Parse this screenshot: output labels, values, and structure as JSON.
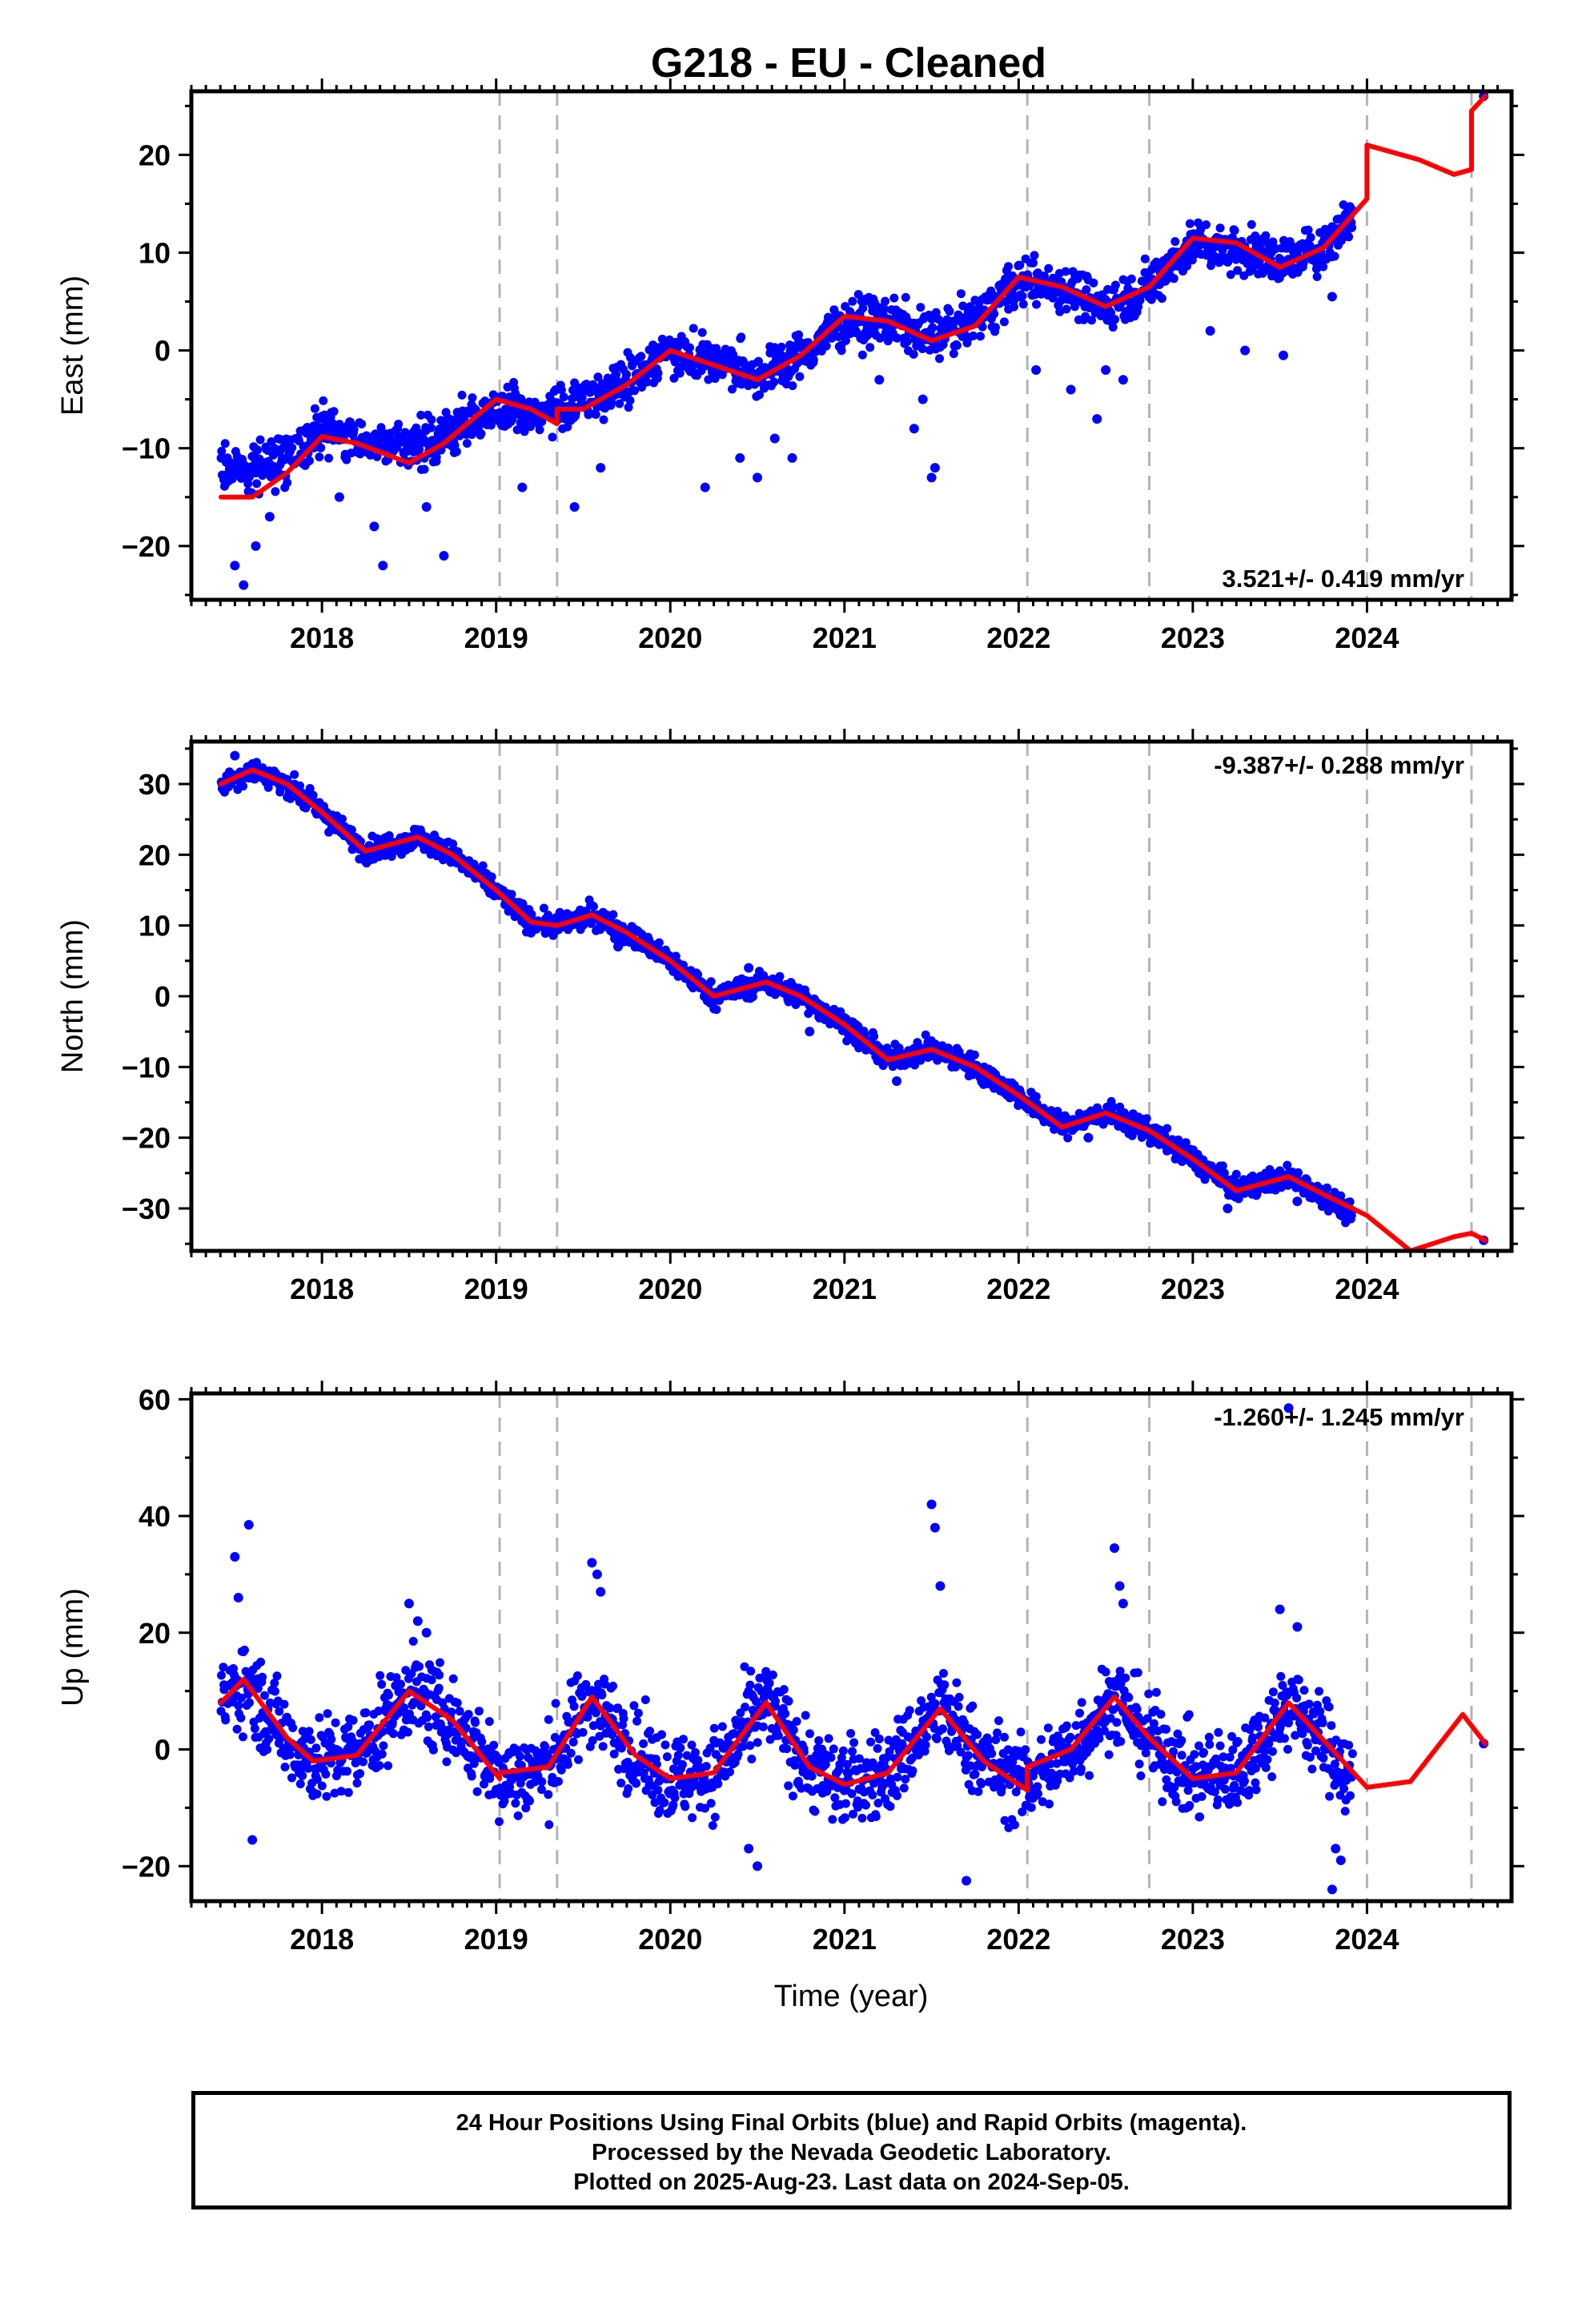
{
  "title": "G218  - EU - Cleaned",
  "xlabel": "Time (year)",
  "x_ticks": [
    "2018",
    "2019",
    "2020",
    "2021",
    "2022",
    "2023",
    "2024"
  ],
  "footer": {
    "line1": "24 Hour Positions Using Final Orbits (blue) and Rapid Orbits (magenta).",
    "line2": "Processed by the Nevada Geodetic Laboratory.",
    "line3": "Plotted on 2025-Aug-23. Last data on 2024-Sep-05."
  },
  "colors": {
    "points": "#0000ff",
    "model": "#ff0000",
    "events": "#b4b4b4"
  },
  "chart_data": [
    {
      "type": "scatter",
      "ylabel": "East (mm)",
      "xlim": [
        2017.25,
        2024.83
      ],
      "ylim": [
        -25.5,
        26.5
      ],
      "y_ticks": [
        -20,
        -10,
        0,
        10,
        20
      ],
      "rate_label": "3.521+/- 0.419 mm/yr",
      "event_lines": [
        2019.02,
        2019.35,
        2022.05,
        2022.75,
        2024.0,
        2024.6
      ],
      "series": [
        {
          "kind": "model",
          "x": [
            2017.42,
            2017.6,
            2017.8,
            2018.0,
            2018.2,
            2018.5,
            2018.7,
            2019.0,
            2019.2,
            2019.35,
            2019.35,
            2019.5,
            2019.75,
            2020.0,
            2020.25,
            2020.5,
            2020.75,
            2021.0,
            2021.25,
            2021.5,
            2021.75,
            2022.0,
            2022.25,
            2022.5,
            2022.75,
            2023.0,
            2023.25,
            2023.5,
            2023.75,
            2024.0,
            2024.0,
            2024.3,
            2024.5,
            2024.6,
            2024.6,
            2024.68
          ],
          "y": [
            -15,
            -15,
            -12.5,
            -8.8,
            -9.5,
            -11.5,
            -9.5,
            -5,
            -6,
            -7.5,
            -6,
            -6,
            -3.5,
            0,
            -1.5,
            -3,
            -0.5,
            3.5,
            3,
            1,
            2.5,
            7.5,
            6.5,
            4.5,
            6.5,
            11.5,
            11,
            8.5,
            10.5,
            15.5,
            21,
            19.5,
            18,
            18.5,
            24.5,
            26
          ]
        },
        {
          "kind": "points",
          "band": 2.2,
          "x": [
            2017.42,
            2017.6,
            2017.8,
            2018.0,
            2018.2,
            2018.5,
            2018.7,
            2019.0,
            2019.2,
            2019.35,
            2019.5,
            2019.75,
            2020.0,
            2020.25,
            2020.5,
            2020.75,
            2021.0,
            2021.25,
            2021.5,
            2021.75,
            2022.0,
            2022.25,
            2022.5,
            2022.75,
            2023.0,
            2023.25,
            2023.5,
            2023.75,
            2023.92
          ],
          "y": [
            -12,
            -12,
            -11,
            -8,
            -9,
            -10,
            -8.5,
            -6,
            -6.5,
            -6,
            -5.5,
            -3,
            0,
            -1,
            -2.5,
            -0.5,
            3,
            3,
            1.5,
            3,
            7,
            6.5,
            4.5,
            6.5,
            11,
            10.5,
            9,
            10.5,
            14
          ]
        },
        {
          "kind": "outliers",
          "x": [
            2017.5,
            2017.55,
            2017.62,
            2017.7,
            2018.1,
            2018.3,
            2018.35,
            2018.6,
            2018.7,
            2019.15,
            2019.45,
            2019.6,
            2020.2,
            2020.4,
            2020.5,
            2020.6,
            2020.7,
            2021.2,
            2021.4,
            2021.45,
            2021.5,
            2021.52,
            2022.1,
            2022.3,
            2022.45,
            2022.5,
            2022.6,
            2023.1,
            2023.3,
            2023.52,
            2023.8,
            2024.67
          ],
          "y": [
            -22,
            -24,
            -20,
            -17,
            -15,
            -18,
            -22,
            -16,
            -21,
            -14,
            -16,
            -12,
            -14,
            -11,
            -13,
            -9,
            -11,
            -3,
            -8,
            -5,
            -13,
            -12,
            -2,
            -4,
            -7,
            -2,
            -3,
            2,
            0,
            -0.5,
            5.5,
            26
          ]
        }
      ]
    },
    {
      "type": "scatter",
      "ylabel": "North (mm)",
      "xlim": [
        2017.25,
        2024.83
      ],
      "ylim": [
        -36,
        36
      ],
      "y_ticks": [
        -30,
        -20,
        -10,
        0,
        10,
        20,
        30
      ],
      "rate_label": "-9.387+/- 0.288 mm/yr",
      "event_lines": [
        2019.02,
        2019.35,
        2022.05,
        2022.75,
        2024.0,
        2024.6
      ],
      "series": [
        {
          "kind": "model",
          "x": [
            2017.42,
            2017.6,
            2017.8,
            2018.0,
            2018.25,
            2018.55,
            2018.75,
            2019.0,
            2019.2,
            2019.35,
            2019.55,
            2019.75,
            2020.0,
            2020.25,
            2020.55,
            2020.75,
            2021.0,
            2021.25,
            2021.5,
            2021.75,
            2022.0,
            2022.25,
            2022.5,
            2022.75,
            2023.0,
            2023.25,
            2023.55,
            2023.75,
            2024.0,
            2024.25,
            2024.5,
            2024.6,
            2024.68
          ],
          "y": [
            30,
            32,
            30,
            26,
            20.5,
            22.5,
            20,
            15,
            10.5,
            10,
            11.5,
            9,
            5,
            0,
            2,
            0,
            -4,
            -9,
            -7.5,
            -10,
            -14,
            -18.5,
            -16.5,
            -19,
            -23,
            -27.5,
            -25.5,
            -28,
            -31,
            -36,
            -34,
            -33.5,
            -34.5
          ]
        },
        {
          "kind": "points",
          "band": 1.5,
          "x": [
            2017.42,
            2017.6,
            2017.8,
            2018.0,
            2018.25,
            2018.55,
            2018.75,
            2019.0,
            2019.2,
            2019.35,
            2019.55,
            2019.75,
            2020.0,
            2020.25,
            2020.55,
            2020.75,
            2021.0,
            2021.25,
            2021.5,
            2021.75,
            2022.0,
            2022.25,
            2022.5,
            2022.75,
            2023.0,
            2023.25,
            2023.55,
            2023.75,
            2023.92
          ],
          "y": [
            30,
            32,
            30,
            26,
            20.5,
            22.5,
            20,
            15,
            10.5,
            10,
            11.5,
            9,
            5,
            0,
            2,
            0,
            -4,
            -9,
            -7.5,
            -10,
            -14,
            -18.5,
            -16.5,
            -19,
            -23,
            -27.5,
            -25.5,
            -28,
            -31
          ]
        },
        {
          "kind": "outliers",
          "x": [
            2017.5,
            2018.1,
            2019.7,
            2020.45,
            2020.8,
            2021.3,
            2022.4,
            2023.2,
            2023.6,
            2024.67
          ],
          "y": [
            34,
            24,
            7,
            4,
            -5,
            -12,
            -20,
            -30,
            -29,
            -34.5
          ]
        }
      ]
    },
    {
      "type": "scatter",
      "ylabel": "Up (mm)",
      "xlim": [
        2017.25,
        2024.83
      ],
      "ylim": [
        -26,
        61
      ],
      "y_ticks": [
        -20,
        0,
        20,
        40,
        60
      ],
      "rate_label": "-1.260+/- 1.245 mm/yr",
      "event_lines": [
        2019.02,
        2019.35,
        2022.05,
        2022.75,
        2024.0,
        2024.6
      ],
      "series": [
        {
          "kind": "model",
          "x": [
            2017.42,
            2017.55,
            2017.8,
            2017.95,
            2018.2,
            2018.5,
            2018.75,
            2019.02,
            2019.02,
            2019.3,
            2019.55,
            2019.8,
            2020.0,
            2020.25,
            2020.55,
            2020.8,
            2021.0,
            2021.25,
            2021.55,
            2021.8,
            2022.05,
            2022.05,
            2022.3,
            2022.55,
            2022.75,
            2023.0,
            2023.25,
            2023.55,
            2023.8,
            2024.0,
            2024.25,
            2024.55,
            2024.68
          ],
          "y": [
            8,
            12,
            2,
            -2,
            -1,
            10,
            5,
            -5,
            -4,
            -3,
            9,
            -1,
            -5,
            -4,
            8,
            -3,
            -6,
            -4,
            7,
            -2,
            -7,
            -3,
            0,
            9,
            2,
            -5,
            -4,
            8,
            0,
            -6.5,
            -5.5,
            6,
            1
          ]
        },
        {
          "kind": "points",
          "band": 7,
          "x": [
            2017.42,
            2017.55,
            2017.8,
            2017.95,
            2018.2,
            2018.5,
            2018.75,
            2019.02,
            2019.3,
            2019.55,
            2019.8,
            2020.0,
            2020.25,
            2020.55,
            2020.8,
            2021.0,
            2021.25,
            2021.55,
            2021.8,
            2022.05,
            2022.3,
            2022.55,
            2022.75,
            2023.0,
            2023.25,
            2023.55,
            2023.8,
            2023.92
          ],
          "y": [
            8,
            12,
            2,
            -2,
            -1,
            10,
            5,
            -5,
            -3,
            9,
            -1,
            -5,
            -4,
            8,
            -3,
            -6,
            -4,
            7,
            -2,
            -6,
            0,
            9,
            2,
            -5,
            -4,
            8,
            0,
            -6
          ]
        },
        {
          "kind": "outliers",
          "x": [
            2017.5,
            2017.52,
            2017.58,
            2017.6,
            2018.5,
            2018.55,
            2018.6,
            2019.55,
            2019.58,
            2019.6,
            2020.45,
            2020.5,
            2021.5,
            2021.52,
            2021.55,
            2021.7,
            2022.55,
            2022.58,
            2022.6,
            2023.5,
            2023.55,
            2023.6,
            2023.8,
            2023.82,
            2023.85,
            2024.67
          ],
          "y": [
            33,
            26,
            38.5,
            -15.5,
            25,
            22,
            20,
            32,
            30,
            27,
            -17,
            -20,
            42,
            38,
            28,
            -22.5,
            34.5,
            28,
            25,
            24,
            58.5,
            21,
            -24,
            -17,
            -19,
            1
          ]
        }
      ]
    }
  ]
}
